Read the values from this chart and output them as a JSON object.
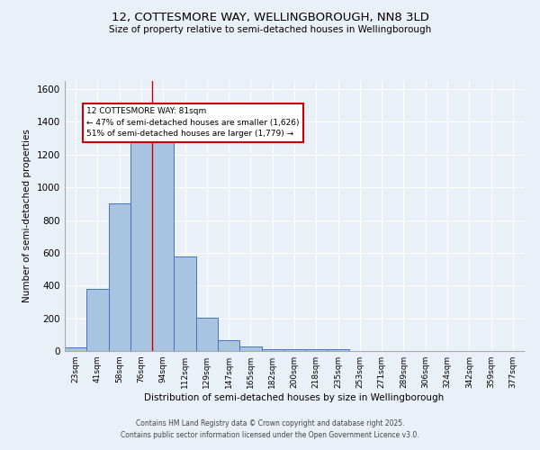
{
  "title": "12, COTTESMORE WAY, WELLINGBOROUGH, NN8 3LD",
  "subtitle": "Size of property relative to semi-detached houses in Wellingborough",
  "xlabel": "Distribution of semi-detached houses by size in Wellingborough",
  "ylabel": "Number of semi-detached properties",
  "categories": [
    "23sqm",
    "41sqm",
    "58sqm",
    "76sqm",
    "94sqm",
    "112sqm",
    "129sqm",
    "147sqm",
    "165sqm",
    "182sqm",
    "200sqm",
    "218sqm",
    "235sqm",
    "253sqm",
    "271sqm",
    "289sqm",
    "306sqm",
    "324sqm",
    "342sqm",
    "359sqm",
    "377sqm"
  ],
  "values": [
    20,
    380,
    900,
    1310,
    1310,
    575,
    205,
    65,
    30,
    12,
    12,
    12,
    12,
    2,
    0,
    0,
    0,
    0,
    0,
    0,
    0
  ],
  "bar_color": "#a8c4e0",
  "bar_edge_color": "#4472c4",
  "background_color": "#eaf0f8",
  "grid_color": "#ffffff",
  "red_line_x": 3.5,
  "annotation_title": "12 COTTESMORE WAY: 81sqm",
  "annotation_line1": "← 47% of semi-detached houses are smaller (1,626)",
  "annotation_line2": "51% of semi-detached houses are larger (1,779) →",
  "annotation_box_color": "#ffffff",
  "annotation_border_color": "#cc0000",
  "red_line_color": "#cc0000",
  "ylim": [
    0,
    1650
  ],
  "yticks": [
    0,
    200,
    400,
    600,
    800,
    1000,
    1200,
    1400,
    1600
  ],
  "footer_line1": "Contains HM Land Registry data © Crown copyright and database right 2025.",
  "footer_line2": "Contains public sector information licensed under the Open Government Licence v3.0."
}
